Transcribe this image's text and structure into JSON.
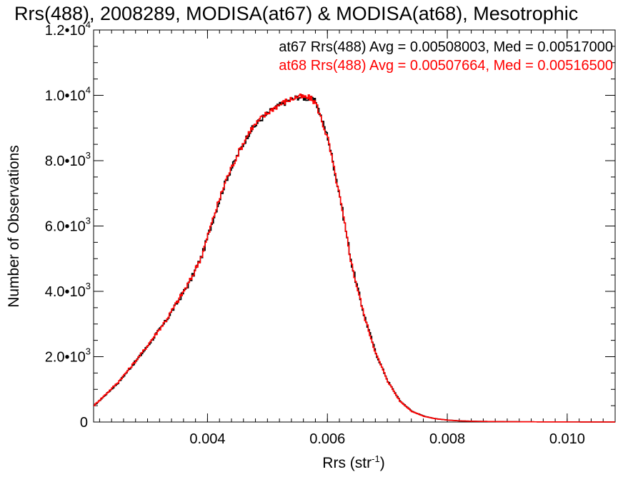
{
  "chart_data": {
    "type": "line",
    "title": "Rrs(488), 2008289, MODISA(at67) & MODISA(at68), Mesotrophic",
    "xlabel": "Rrs (str",
    "xlabel_sup": "-1",
    "xlabel_suffix": ")",
    "ylabel": "Number of Observations",
    "xlim": [
      0.0021,
      0.0108
    ],
    "ylim": [
      0,
      12000
    ],
    "xticks": [
      {
        "value": 0.004,
        "label": "0.004"
      },
      {
        "value": 0.006,
        "label": "0.006"
      },
      {
        "value": 0.008,
        "label": "0.008"
      },
      {
        "value": 0.01,
        "label": "0.010"
      }
    ],
    "yticks": [
      {
        "value": 0,
        "mant": "0",
        "exp": ""
      },
      {
        "value": 2000,
        "mant": "2.0•10",
        "exp": "3"
      },
      {
        "value": 4000,
        "mant": "4.0•10",
        "exp": "3"
      },
      {
        "value": 6000,
        "mant": "6.0•10",
        "exp": "3"
      },
      {
        "value": 8000,
        "mant": "8.0•10",
        "exp": "3"
      },
      {
        "value": 10000,
        "mant": "1.0•10",
        "exp": "4"
      },
      {
        "value": 12000,
        "mant": "1.2•10",
        "exp": "4"
      }
    ],
    "legend": [
      {
        "text": "at67 Rrs(488) Avg = 0.00508003, Med = 0.00517000",
        "color": "#000000"
      },
      {
        "text": "at68 Rrs(488) Avg = 0.00507664, Med = 0.00516500",
        "color": "#ff0000"
      }
    ],
    "series": [
      {
        "color": "#000000",
        "x": [
          0.0021,
          0.0023,
          0.0025,
          0.0027,
          0.0029,
          0.0031,
          0.0033,
          0.0035,
          0.0037,
          0.0039,
          0.0041,
          0.0043,
          0.0045,
          0.0047,
          0.0049,
          0.0051,
          0.0053,
          0.0055,
          0.0057,
          0.0058,
          0.006,
          0.0062,
          0.0064,
          0.0066,
          0.0068,
          0.007,
          0.0072,
          0.0074,
          0.0076,
          0.0078,
          0.008,
          0.0082,
          0.0085,
          0.009,
          0.0095,
          0.01,
          0.0108
        ],
        "values": [
          500,
          850,
          1200,
          1650,
          2100,
          2600,
          3100,
          3700,
          4300,
          5100,
          6300,
          7400,
          8200,
          8900,
          9300,
          9600,
          9800,
          9950,
          9900,
          9800,
          8700,
          6900,
          4800,
          3300,
          2100,
          1250,
          650,
          330,
          180,
          100,
          60,
          35,
          20,
          10,
          5,
          3,
          1
        ]
      },
      {
        "color": "#ff0000",
        "x": [
          0.0021,
          0.0023,
          0.0025,
          0.0027,
          0.0029,
          0.0031,
          0.0033,
          0.0035,
          0.0037,
          0.0039,
          0.0041,
          0.0043,
          0.0045,
          0.0047,
          0.0049,
          0.0051,
          0.0053,
          0.0055,
          0.0057,
          0.0058,
          0.006,
          0.0062,
          0.0064,
          0.0066,
          0.0068,
          0.007,
          0.0072,
          0.0074,
          0.0076,
          0.0078,
          0.008,
          0.0082,
          0.0085,
          0.009,
          0.0095,
          0.01,
          0.0108
        ],
        "values": [
          510,
          860,
          1220,
          1660,
          2120,
          2620,
          3120,
          3720,
          4320,
          5120,
          6320,
          7420,
          8220,
          8930,
          9320,
          9620,
          9820,
          9960,
          9920,
          9760,
          8650,
          6850,
          4780,
          3280,
          2090,
          1240,
          640,
          325,
          175,
          98,
          58,
          34,
          19,
          10,
          5,
          3,
          1
        ]
      }
    ]
  }
}
